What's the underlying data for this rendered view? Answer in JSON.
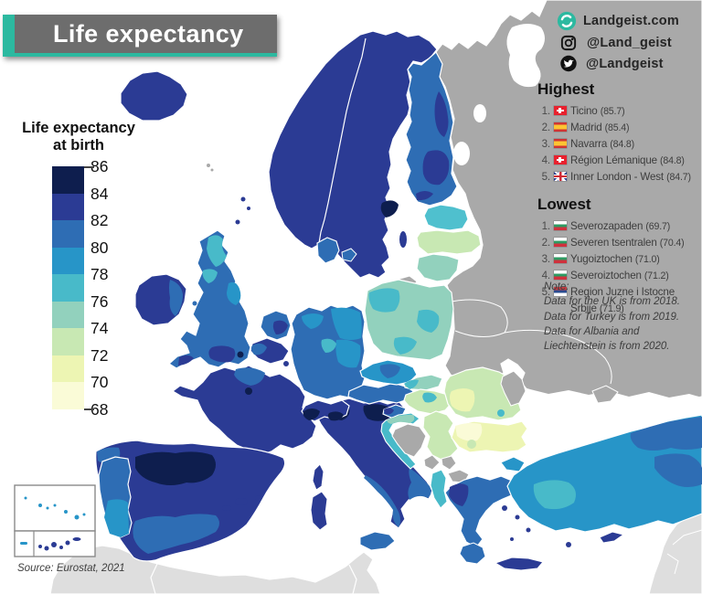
{
  "title": "Life expectancy",
  "branding": {
    "website": "Landgeist.com",
    "instagram": "@Land_geist",
    "twitter": "@Landgeist"
  },
  "legend": {
    "title_line1": "Life expectancy",
    "title_line2": "at birth",
    "ticks": [
      "86",
      "84",
      "82",
      "80",
      "78",
      "76",
      "74",
      "72",
      "70",
      "68"
    ],
    "band_colors": [
      "#0e1e4e",
      "#2b3b94",
      "#2e6db4",
      "#2795c8",
      "#48bac9",
      "#92d1bd",
      "#c8e8b3",
      "#edf5b3",
      "#fafbd7"
    ]
  },
  "highest": {
    "header": "Highest",
    "items": [
      {
        "rank": "1.",
        "flag": "ch",
        "name": "Ticino",
        "value": "(85.7)"
      },
      {
        "rank": "2.",
        "flag": "es",
        "name": "Madrid",
        "value": "(85.4)"
      },
      {
        "rank": "3.",
        "flag": "es",
        "name": "Navarra",
        "value": "(84.8)"
      },
      {
        "rank": "4.",
        "flag": "ch",
        "name": "Région Lémanique",
        "value": "(84.8)"
      },
      {
        "rank": "5.",
        "flag": "gb",
        "name": "Inner London - West",
        "value": "(84.7)"
      }
    ]
  },
  "lowest": {
    "header": "Lowest",
    "items": [
      {
        "rank": "1.",
        "flag": "bg",
        "name": "Severozapaden",
        "value": "(69.7)"
      },
      {
        "rank": "2.",
        "flag": "bg",
        "name": "Severen tsentralen",
        "value": "(70.4)"
      },
      {
        "rank": "3.",
        "flag": "bg",
        "name": "Yugoiztochen",
        "value": "(71.0)"
      },
      {
        "rank": "4.",
        "flag": "bg",
        "name": "Severoiztochen",
        "value": "(71.2)"
      },
      {
        "rank": "5.",
        "flag": "rs",
        "name": "Region Juzne i Istocne Srbije",
        "value": "(71.9)"
      }
    ]
  },
  "note": {
    "text": "Note:\nData for the UK is from 2018.\nData for Turkey is from 2019.\nData for Albania and\nLiechtenstein is from 2020."
  },
  "source": "Source: Eurostat, 2021",
  "map": {
    "sea": "#ffffff",
    "no_data": "#a9a9a9",
    "outside_europe": "#dedede",
    "border": "#ffffff",
    "accent": "#2cb9a0",
    "banner_gray": "#6d6d6d",
    "regions": {
      "sea": "#ffffff",
      "africa_northwest": "#dedede",
      "middle_east": "#dedede",
      "russia_mass": "#a9a9a9",
      "white_sea": "#ffffff",
      "lake_ladoga": "#ffffff",
      "lake_onega": "#ffffff",
      "black_sea": "#ffffff",
      "crimea": "#a9a9a9",
      "scandinavia": "#2b3b94",
      "stockholm": "#0e1e4e",
      "gotland": "#2b3b94",
      "finland": "#2e6db4",
      "finland_south_patch": "#2b3b94",
      "finland_east_patch": "#2b3b94",
      "finland_helsinki_patch": "#2b3b94",
      "denmark": "#2e6db4",
      "denmark_island": "#2e6db4",
      "estonia": "#4fc0ce",
      "latvia": "#c8e8b3",
      "lithuania": "#92d1bd",
      "kaliningrad": "#a9a9a9",
      "poland": "#92d1bd",
      "poland_nw_patch": "#48bac9",
      "poland_center_patch": "#48bac9",
      "poland_south_patch": "#48bac9",
      "germany": "#2e6db4",
      "germany_ne_patch": "#2795c8",
      "germany_east_patch": "#2795c8",
      "germany_nw_patch": "#2795c8",
      "germany_teal_patch": "#48bac9",
      "netherlands": "#2e6db4",
      "netherlands_patch": "#2b3b94",
      "belgium": "#2b3b94",
      "belgium_west_patch": "#2e6db4",
      "luxembourg": "#2b3b94",
      "great_britain": "#2e6db4",
      "scotland_north_patch": "#48bac9",
      "scotland_south_patch": "#48bac9",
      "england_north_patch": "#2795c8",
      "england_southwest_patch": "#2b3b94",
      "cornwall_patch": "#2b3b94",
      "inner_london": "#0e1e4e",
      "isle_of_man": "#2e6db4",
      "shetland_islands": "#2b3b94",
      "faroe_islands": "#a9a9a9",
      "ireland": "#2b3b94",
      "ireland_east_patch": "#2e6db4",
      "iceland": "#2b3b94",
      "france": "#2b3b94",
      "france_north_patch": "#2e6db4",
      "paris_patch": "#0e1e4e",
      "corsica": "#2b3b94",
      "spain": "#2b3b94",
      "spain_navy_patch": "#0e1e4e",
      "galicia_patch": "#2e6db4",
      "andalusia_patch": "#2e6db4",
      "balearic_islands": "#2b3b94",
      "portugal": "#2e6db4",
      "portugal_south_patch": "#2795c8",
      "italy": "#2b3b94",
      "italy_northeast_patch": "#0e1e4e",
      "italy_lombardy_patch": "#0e1e4e",
      "italy_south_patch": "#2e6db4",
      "italy_puglia_patch": "#2e6db4",
      "sicily": "#2e6db4",
      "sardinia": "#2b3b94",
      "switzerland": "#2b3b94",
      "switzerland_leman_patch": "#0e1e4e",
      "switzerland_ticino_patch": "#0e1e4e",
      "austria": "#2e6db4",
      "czechia": "#2795c8",
      "czechia_prague_patch": "#2e6db4",
      "slovakia": "#92d1bd",
      "slovakia_west_patch": "#48bac9",
      "hungary": "#c8e8b3",
      "hungary_budapest_patch": "#48bac9",
      "slovenia": "#2e6db4",
      "slovenia_west_patch": "#2b3b94",
      "croatia": "#48bac9",
      "croatia_north_patch": "#92d1bd",
      "bosnia_herzegovina": "#a9a9a9",
      "serbia": "#c8e8b3",
      "montenegro": "#a9a9a9",
      "kosovo": "#a9a9a9",
      "north_macedonia": "#a9a9a9",
      "albania": "#48bac9",
      "romania": "#c8e8b3",
      "romania_west_patch": "#edf5b3",
      "bucharest_patch": "#48bac9",
      "moldova": "#a9a9a9",
      "bulgaria": "#edf5b3",
      "bulgaria_nw_patch": "#fafbd7",
      "sofia_patch": "#c8e8b3",
      "greece": "#2e6db4",
      "greece_epirus_patch": "#2b3b94",
      "peloponnese": "#2e6db4",
      "greek_islands": "#2b3b94",
      "crete": "#2b3b94",
      "turkey_thrace": "#2795c8",
      "turkey": "#2795c8",
      "turkey_central_patch": "#48bac9",
      "turkey_ne_patch": "#2e6db4",
      "turkey_east_patch": "#2e6db4",
      "cyprus": "#2b3b94",
      "azores": "#2795c8",
      "madeira": "#2795c8",
      "canary_islands": "#2b3b94"
    }
  }
}
